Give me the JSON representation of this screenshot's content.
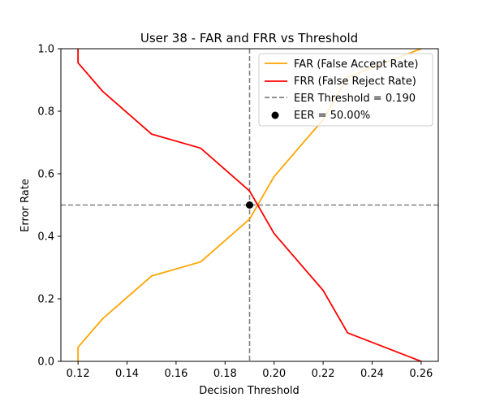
{
  "chart_data": {
    "type": "line",
    "title": "User 38 - FAR and FRR vs Threshold",
    "xlabel": "Decision Threshold",
    "ylabel": "Error Rate",
    "xlim": [
      0.113,
      0.267
    ],
    "ylim": [
      0.0,
      1.0
    ],
    "xticks": [
      0.12,
      0.14,
      0.16,
      0.18,
      0.2,
      0.22,
      0.24,
      0.26
    ],
    "xtick_labels": [
      "0.12",
      "0.14",
      "0.16",
      "0.18",
      "0.20",
      "0.22",
      "0.24",
      "0.26"
    ],
    "yticks": [
      0.0,
      0.2,
      0.4,
      0.6,
      0.8,
      1.0
    ],
    "ytick_labels": [
      "0.0",
      "0.2",
      "0.4",
      "0.6",
      "0.8",
      "1.0"
    ],
    "grid": false,
    "legend_position": "top-right",
    "series": [
      {
        "name": "FAR (False Accept Rate)",
        "color": "#ffa500",
        "x": [
          0.12,
          0.12,
          0.13,
          0.15,
          0.17,
          0.19,
          0.2,
          0.22,
          0.23,
          0.26
        ],
        "y": [
          0.0,
          0.045,
          0.136,
          0.273,
          0.318,
          0.455,
          0.591,
          0.773,
          0.909,
          1.0
        ]
      },
      {
        "name": "FRR (False Reject Rate)",
        "color": "#ff0000",
        "x": [
          0.12,
          0.12,
          0.13,
          0.15,
          0.17,
          0.19,
          0.2,
          0.22,
          0.23,
          0.26
        ],
        "y": [
          1.0,
          0.955,
          0.864,
          0.727,
          0.682,
          0.545,
          0.409,
          0.227,
          0.091,
          0.0
        ]
      }
    ],
    "eer_threshold": {
      "value": 0.19,
      "label": "EER Threshold = 0.190",
      "color": "#808080"
    },
    "eer_rate_line": {
      "value": 0.5,
      "color": "#808080"
    },
    "eer_point": {
      "x": 0.19,
      "y": 0.5,
      "label": "EER = 50.00%",
      "color": "#000000"
    }
  }
}
